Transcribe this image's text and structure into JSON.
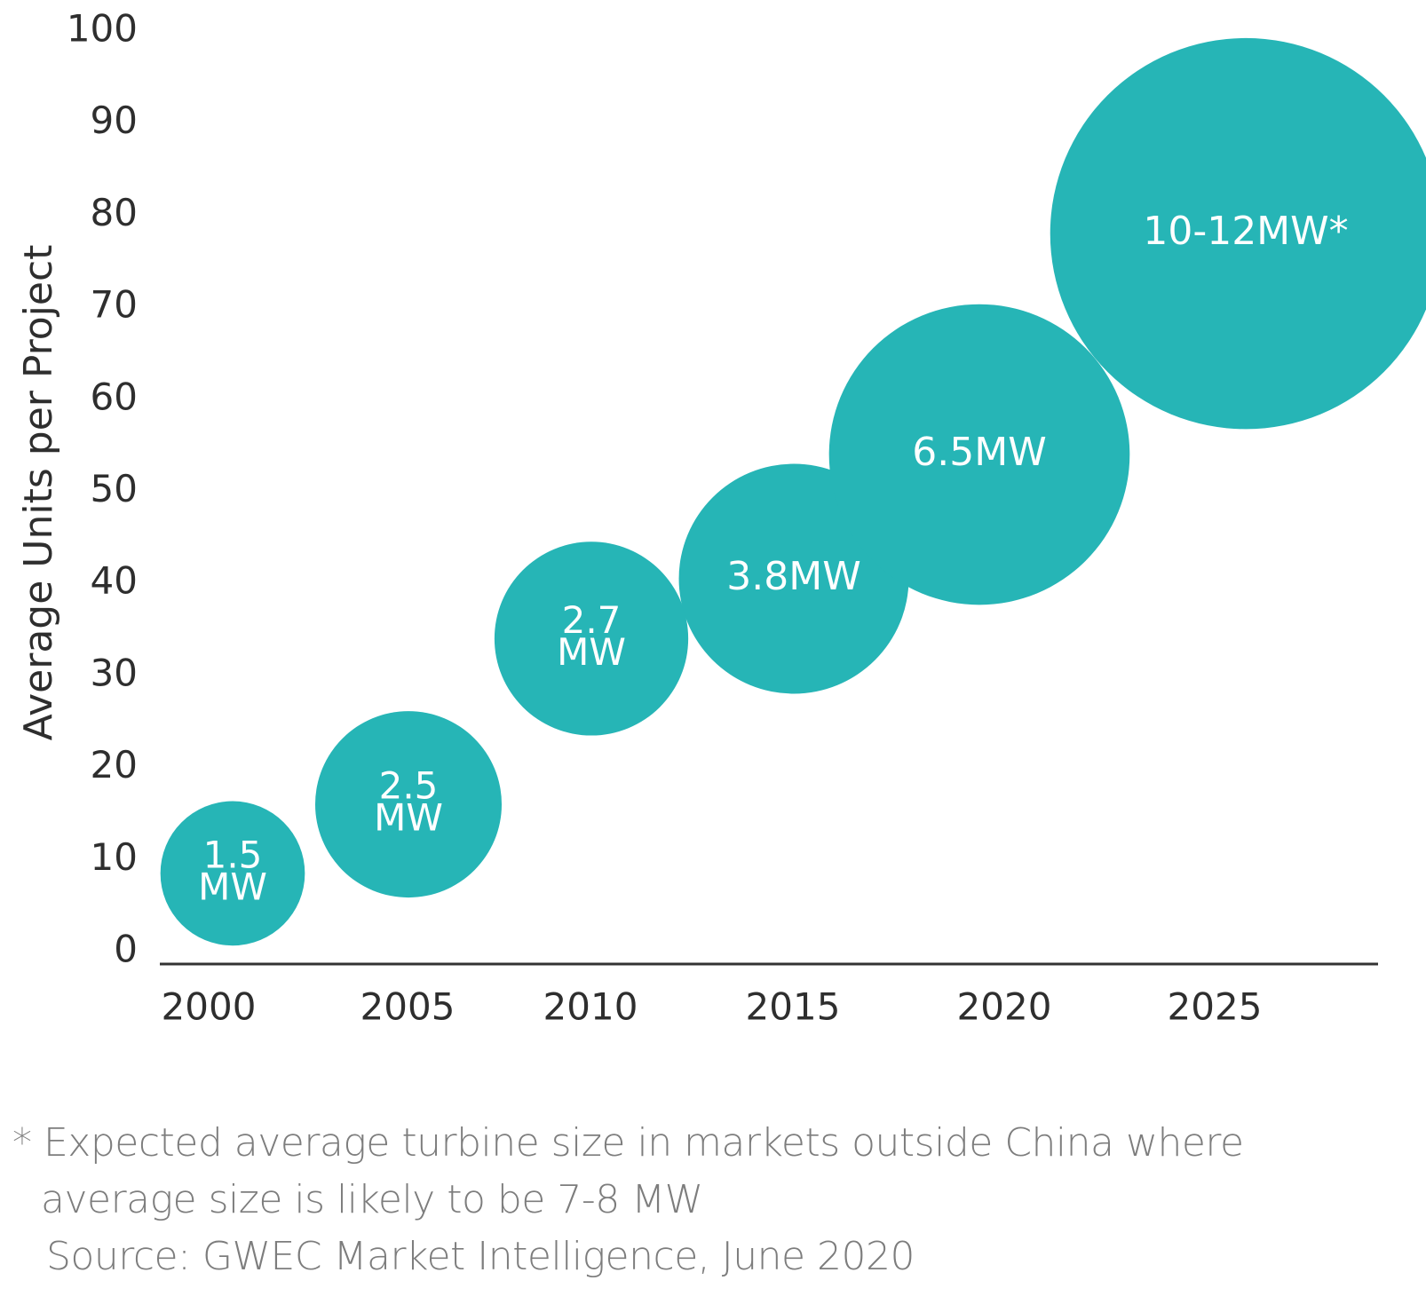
{
  "chart_data": {
    "type": "bubble",
    "ylabel": "Average Units per Project",
    "xlabel": "",
    "ylim": [
      0,
      100
    ],
    "yticks": [
      0,
      10,
      20,
      30,
      40,
      50,
      60,
      70,
      80,
      90,
      100
    ],
    "categories": [
      "2000",
      "2005",
      "2010",
      "2015",
      "2020",
      "2025"
    ],
    "points": [
      {
        "x": "2000",
        "y": 8.5,
        "size_mw": 1.5,
        "label_lines": [
          "1.5",
          "MW"
        ]
      },
      {
        "x": "2005",
        "y": 16,
        "size_mw": 2.5,
        "label_lines": [
          "2.5",
          "MW"
        ]
      },
      {
        "x": "2010",
        "y": 34,
        "size_mw": 2.7,
        "label_lines": [
          "2.7",
          "MW"
        ]
      },
      {
        "x": "2015",
        "y": 40.5,
        "size_mw": 3.8,
        "label_lines": [
          "3.8MW"
        ]
      },
      {
        "x": "2020",
        "y": 54,
        "size_mw": 6.5,
        "label_lines": [
          "6.5MW"
        ]
      },
      {
        "x": "2025",
        "y": 78,
        "size_mw": 11,
        "label_lines": [
          "10-12MW*"
        ]
      }
    ],
    "colors": {
      "bubble": "#26b5b6",
      "bubble_text": "#ffffff",
      "axis": "#333333",
      "tick_text": "#2e2e2e"
    },
    "grid": false,
    "legend": "none"
  },
  "notes": {
    "footnote_line1": "* Expected average turbine size in markets outside China where",
    "footnote_line2": "average size is likely to be 7-8 MW",
    "source": "Source: GWEC Market Intelligence, June 2020"
  }
}
